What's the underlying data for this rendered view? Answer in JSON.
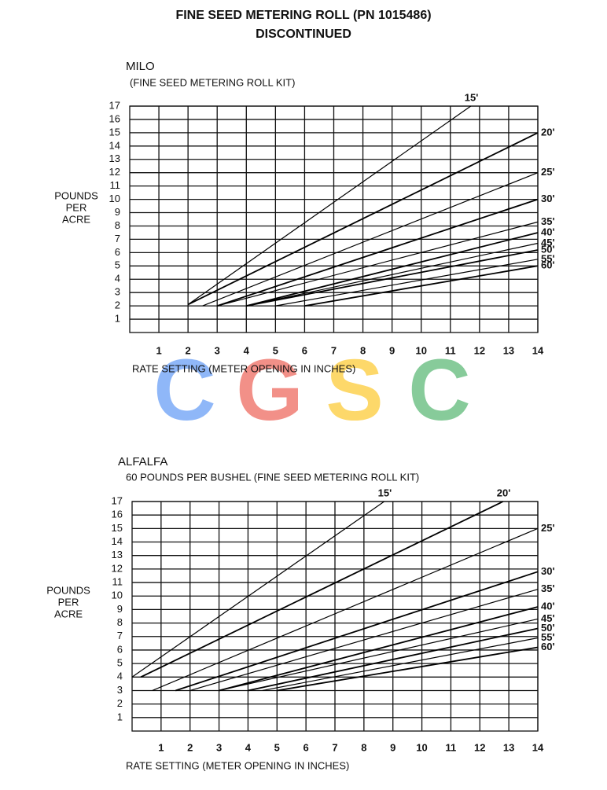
{
  "title": [
    "FINE SEED METERING ROLL (PN 1015486)",
    "DISCONTINUED"
  ],
  "watermark": {
    "letters": [
      "C",
      "G",
      "S",
      "C"
    ],
    "colors": [
      "#8ab4f8",
      "#f28b82",
      "#fdd663",
      "#81c995"
    ]
  },
  "chart_data": [
    {
      "type": "line",
      "title": "MILO",
      "subtitle": "(FINE SEED METERING ROLL KIT)",
      "y_label": [
        "POUNDS",
        "PER",
        "ACRE"
      ],
      "x_label": "RATE SETTING (METER OPENING IN INCHES)",
      "xlim": [
        0,
        14
      ],
      "xticks": [
        1,
        2,
        3,
        4,
        5,
        6,
        7,
        8,
        9,
        10,
        11,
        12,
        13,
        14
      ],
      "ylim": [
        0,
        17
      ],
      "yticks": [
        1,
        2,
        3,
        4,
        5,
        6,
        7,
        8,
        9,
        10,
        11,
        12,
        13,
        14,
        15,
        16,
        17
      ],
      "grid": true,
      "color": "#000000",
      "series": [
        {
          "name": "15'",
          "x": [
            2,
            11.7
          ],
          "values": [
            2.1,
            17
          ]
        },
        {
          "name": "20'",
          "x": [
            2,
            14
          ],
          "values": [
            2.1,
            15
          ]
        },
        {
          "name": "25'",
          "x": [
            2.5,
            14
          ],
          "values": [
            2,
            12
          ]
        },
        {
          "name": "30'",
          "x": [
            3,
            14
          ],
          "values": [
            2,
            10
          ]
        },
        {
          "name": "35'",
          "x": [
            3,
            14
          ],
          "values": [
            2,
            8.3
          ]
        },
        {
          "name": "40'",
          "x": [
            4,
            14
          ],
          "values": [
            2,
            7.5
          ]
        },
        {
          "name": "45'",
          "x": [
            4,
            14
          ],
          "values": [
            2,
            6.7
          ]
        },
        {
          "name": "50'",
          "x": [
            4,
            14
          ],
          "values": [
            2,
            6.2
          ]
        },
        {
          "name": "55'",
          "x": [
            5,
            14
          ],
          "values": [
            2,
            5.5
          ]
        },
        {
          "name": "60'",
          "x": [
            6,
            14
          ],
          "values": [
            2,
            5
          ]
        }
      ]
    },
    {
      "type": "line",
      "title": "ALFALFA",
      "subtitle": "60 POUNDS PER BUSHEL (FINE SEED METERING ROLL KIT)",
      "y_label": [
        "POUNDS",
        "PER",
        "ACRE"
      ],
      "x_label": "RATE SETTING (METER OPENING IN INCHES)",
      "xlim": [
        0,
        14
      ],
      "xticks": [
        1,
        2,
        3,
        4,
        5,
        6,
        7,
        8,
        9,
        10,
        11,
        12,
        13,
        14
      ],
      "ylim": [
        0,
        17
      ],
      "yticks": [
        1,
        2,
        3,
        4,
        5,
        6,
        7,
        8,
        9,
        10,
        11,
        12,
        13,
        14,
        15,
        16,
        17
      ],
      "grid": true,
      "color": "#000000",
      "series": [
        {
          "name": "15'",
          "x": [
            0,
            8.7
          ],
          "values": [
            4,
            17
          ]
        },
        {
          "name": "20'",
          "x": [
            0.3,
            12.8
          ],
          "values": [
            4,
            17
          ]
        },
        {
          "name": "25'",
          "x": [
            0.7,
            14
          ],
          "values": [
            3,
            15
          ]
        },
        {
          "name": "30'",
          "x": [
            1.5,
            14
          ],
          "values": [
            3,
            11.8
          ]
        },
        {
          "name": "35'",
          "x": [
            2,
            14
          ],
          "values": [
            3,
            10.5
          ]
        },
        {
          "name": "40'",
          "x": [
            3,
            14
          ],
          "values": [
            3,
            9.2
          ]
        },
        {
          "name": "45'",
          "x": [
            3,
            14
          ],
          "values": [
            3,
            8.3
          ]
        },
        {
          "name": "50'",
          "x": [
            4,
            14
          ],
          "values": [
            3,
            7.6
          ]
        },
        {
          "name": "55'",
          "x": [
            4.5,
            14
          ],
          "values": [
            3,
            6.9
          ]
        },
        {
          "name": "60'",
          "x": [
            5,
            14
          ],
          "values": [
            3,
            6.2
          ]
        }
      ]
    }
  ]
}
